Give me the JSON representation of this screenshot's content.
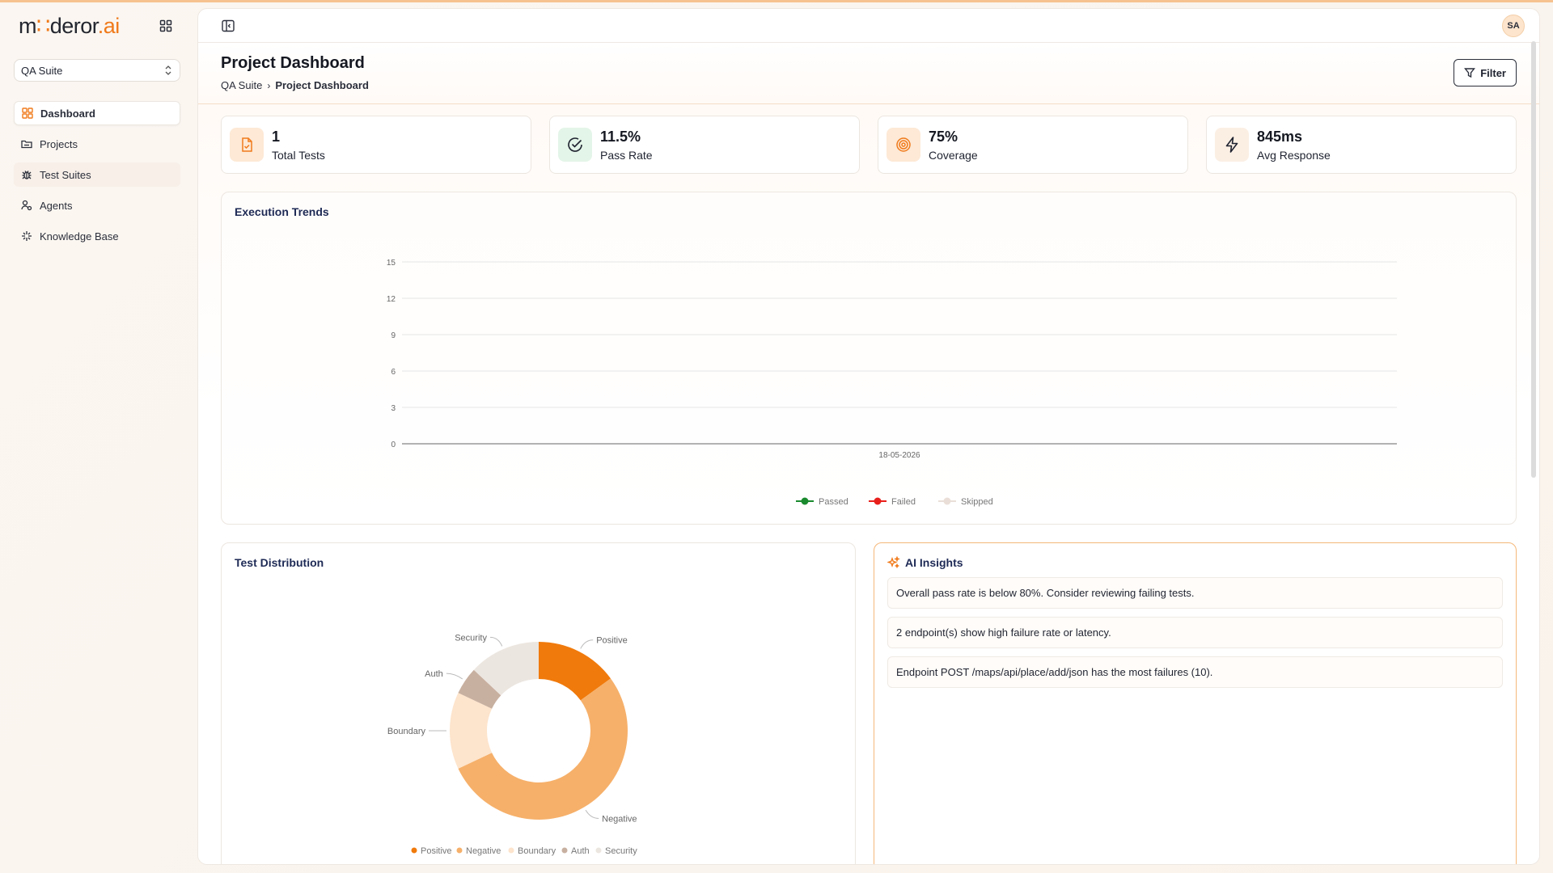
{
  "brand": {
    "name_pre": "m",
    "name_dot": "∷",
    "name_mid": "deror",
    "name_dot2": ".",
    "name_ai": "ai"
  },
  "workspace": {
    "selected": "QA Suite"
  },
  "sidebar": {
    "items": [
      {
        "label": "Dashboard",
        "icon": "dashboard-icon",
        "active": true
      },
      {
        "label": "Projects",
        "icon": "folder-icon"
      },
      {
        "label": "Test Suites",
        "icon": "bug-icon"
      },
      {
        "label": "Agents",
        "icon": "agents-icon"
      },
      {
        "label": "Knowledge Base",
        "icon": "sparkle-icon"
      }
    ]
  },
  "user": {
    "initials": "SA"
  },
  "header": {
    "title": "Project Dashboard",
    "breadcrumb": [
      "QA Suite",
      "Project Dashboard"
    ],
    "filter_label": "Filter"
  },
  "stats": [
    {
      "value": "1",
      "label": "Total Tests",
      "icon": "file-check-icon"
    },
    {
      "value": "11.5%",
      "label": "Pass Rate",
      "icon": "check-circle-icon"
    },
    {
      "value": "75%",
      "label": "Coverage",
      "icon": "target-icon"
    },
    {
      "value": "845ms",
      "label": "Avg Response",
      "icon": "bolt-icon"
    }
  ],
  "trends": {
    "title": "Execution Trends",
    "legend": [
      "Passed",
      "Failed",
      "Skipped"
    ]
  },
  "distribution": {
    "title": "Test Distribution",
    "legend": [
      "Positive",
      "Negative",
      "Boundary",
      "Auth",
      "Security"
    ]
  },
  "insights": {
    "title": "AI Insights",
    "items": [
      "Overall pass rate is below 80%. Consider reviewing failing tests.",
      "2 endpoint(s) show high failure rate or latency.",
      "Endpoint POST /maps/api/place/add/json has the most failures (10)."
    ]
  },
  "chart_data": [
    {
      "type": "line",
      "title": "Execution Trends",
      "x": [
        "18-05-2026"
      ],
      "ylim": [
        0,
        15
      ],
      "yticks": [
        0,
        3,
        6,
        9,
        12,
        15
      ],
      "series": [
        {
          "name": "Passed",
          "values": [
            0
          ],
          "color": "#1a8a2e"
        },
        {
          "name": "Failed",
          "values": [
            0
          ],
          "color": "#e8201c"
        },
        {
          "name": "Skipped",
          "values": [
            0
          ],
          "color": "#eadfd8"
        }
      ],
      "legend_position": "bottom",
      "grid": true
    },
    {
      "type": "pie",
      "title": "Test Distribution",
      "labels": [
        "Positive",
        "Negative",
        "Boundary",
        "Auth",
        "Security"
      ],
      "values": [
        15,
        53,
        14,
        5,
        13
      ],
      "colors": [
        "#f07a0c",
        "#f6b06a",
        "#fde4cc",
        "#c8b0a0",
        "#ece6e0"
      ],
      "donut": true,
      "legend_position": "bottom"
    }
  ]
}
